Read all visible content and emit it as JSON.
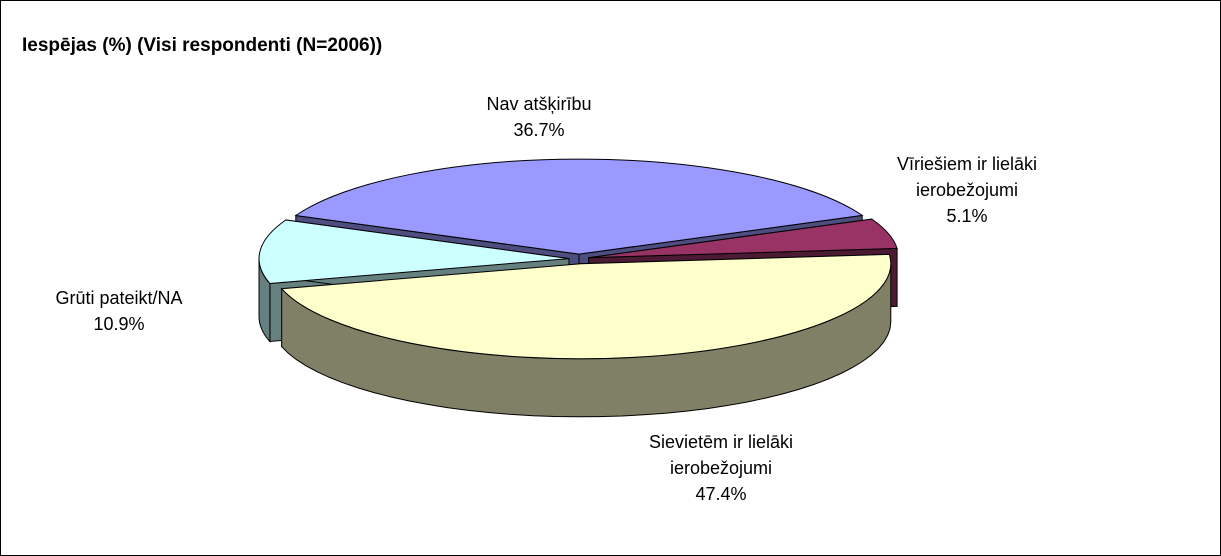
{
  "chart_data": {
    "type": "pie",
    "title": "Iespējas (%) (Visi respondenti (N=2006))",
    "categories": [
      "Nav atšķirību",
      "Vīriešiem ir lielāki ierobežojumi",
      "Sievietēm ir lielāki ierobežojumi",
      "Grūti pateikt/NA"
    ],
    "values": [
      36.7,
      5.1,
      47.4,
      10.9
    ],
    "value_labels": [
      "36.7%",
      "5.1%",
      "47.4%",
      "10.9%"
    ],
    "colors": [
      "#9999ff",
      "#993366",
      "#ffffcc",
      "#ccffff"
    ]
  }
}
